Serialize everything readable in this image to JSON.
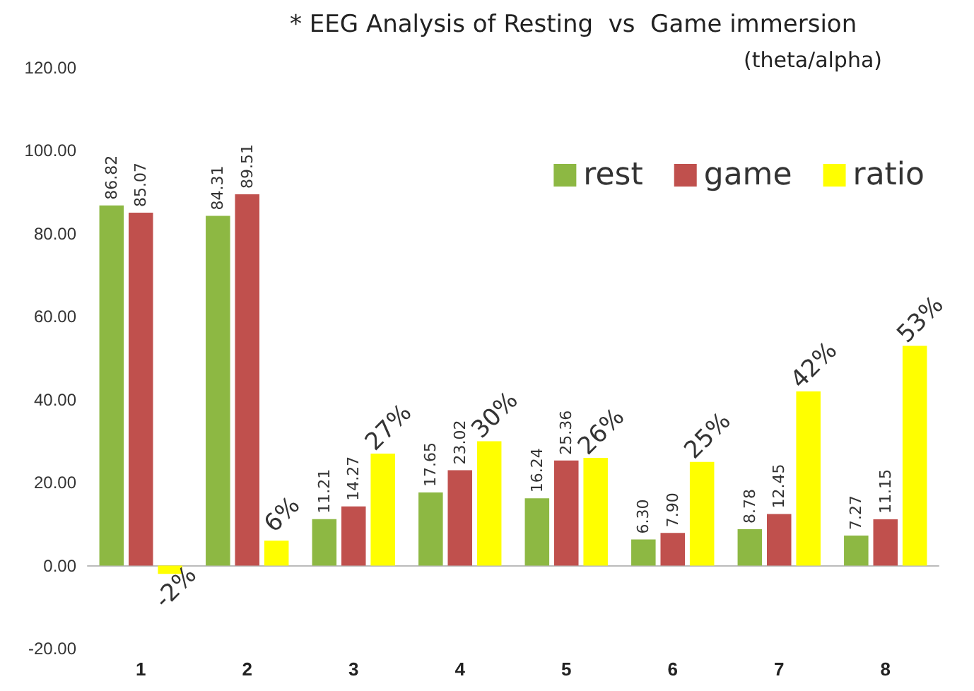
{
  "chart_data": {
    "type": "bar",
    "title": "* EEG Analysis of Resting  vs  Game immersion",
    "subtitle": "(theta/alpha)",
    "categories": [
      "1",
      "2",
      "3",
      "4",
      "5",
      "6",
      "7",
      "8"
    ],
    "series": [
      {
        "name": "rest",
        "color": "#8db843",
        "values": [
          86.82,
          84.31,
          11.21,
          17.65,
          16.24,
          6.3,
          8.78,
          7.27
        ],
        "value_labels": [
          "86.82",
          "84.31",
          "11.21",
          "17.65",
          "16.24",
          "6.30",
          "8.78",
          "7.27"
        ]
      },
      {
        "name": "game",
        "color": "#c0504d",
        "values": [
          85.07,
          89.51,
          14.27,
          23.02,
          25.36,
          7.9,
          12.45,
          11.15
        ],
        "value_labels": [
          "85.07",
          "89.51",
          "14.27",
          "23.02",
          "25.36",
          "7.90",
          "12.45",
          "11.15"
        ]
      },
      {
        "name": "ratio",
        "color": "#ffff00",
        "values": [
          -2,
          6,
          27,
          30,
          26,
          25,
          42,
          53
        ],
        "value_labels": [
          "-2%",
          "6%",
          "27%",
          "30%",
          "26%",
          "25%",
          "42%",
          "53%"
        ]
      }
    ],
    "ylim": [
      -20,
      120
    ],
    "yticks": [
      {
        "value": -20,
        "label": "-20.00"
      },
      {
        "value": 0,
        "label": "0.00"
      },
      {
        "value": 20,
        "label": "20.00"
      },
      {
        "value": 40,
        "label": "40.00"
      },
      {
        "value": 60,
        "label": "60.00"
      },
      {
        "value": 80,
        "label": "80.00"
      },
      {
        "value": 100,
        "label": "100.00"
      },
      {
        "value": 120,
        "label": "120.00"
      }
    ],
    "legend": "top right"
  }
}
